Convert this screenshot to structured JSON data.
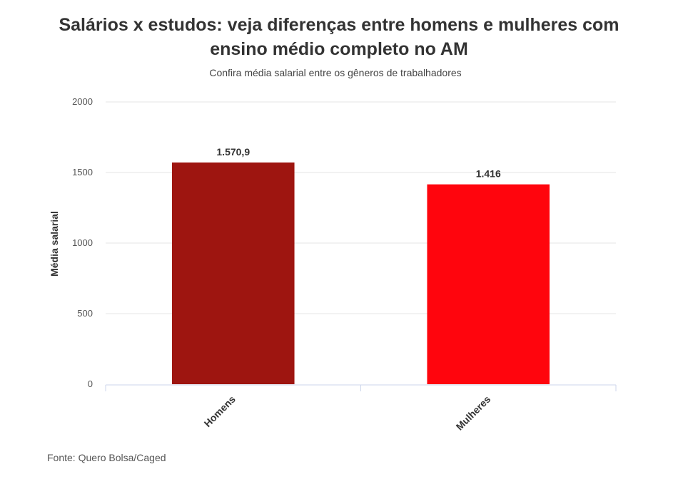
{
  "chart_data": {
    "type": "bar",
    "title_lines": [
      "Salários x estudos: veja diferenças entre homens e mulheres com",
      "ensino médio completo no AM"
    ],
    "subtitle": "Confira média salarial entre os gêneros de trabalhadores",
    "xlabel": "",
    "ylabel": "Média salarial",
    "ylim": [
      0,
      2000
    ],
    "yticks": [
      0,
      500,
      1000,
      1500,
      2000
    ],
    "ytick_labels": [
      "0",
      "500",
      "1000",
      "1500",
      "2000"
    ],
    "categories": [
      "Homens",
      "Mulheres"
    ],
    "values": [
      1570.9,
      1416
    ],
    "data_labels": [
      "1.570,9",
      "1.416"
    ],
    "colors": [
      "#9e1510",
      "#ff050d"
    ],
    "grid": true,
    "legend": "none",
    "source": "Fonte: Quero Bolsa/Caged"
  }
}
